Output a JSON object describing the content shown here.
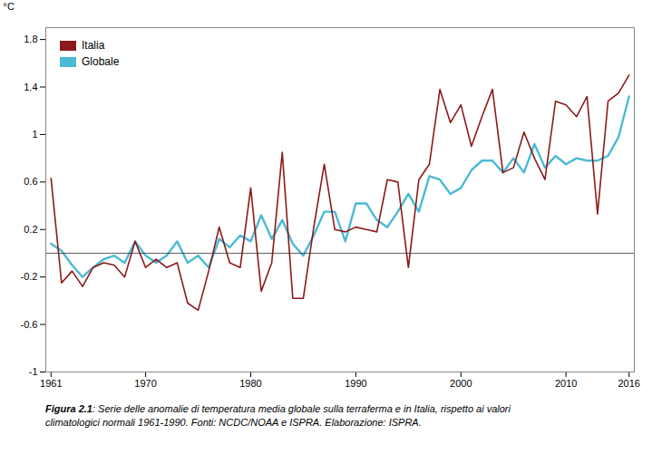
{
  "chart_data": {
    "type": "line",
    "x": [
      1961,
      1962,
      1963,
      1964,
      1965,
      1966,
      1967,
      1968,
      1969,
      1970,
      1971,
      1972,
      1973,
      1974,
      1975,
      1976,
      1977,
      1978,
      1979,
      1980,
      1981,
      1982,
      1983,
      1984,
      1985,
      1986,
      1987,
      1988,
      1989,
      1990,
      1991,
      1992,
      1993,
      1994,
      1995,
      1996,
      1997,
      1998,
      1999,
      2000,
      2001,
      2002,
      2003,
      2004,
      2005,
      2006,
      2007,
      2008,
      2009,
      2010,
      2011,
      2012,
      2013,
      2014,
      2015,
      2016
    ],
    "series": [
      {
        "name": "Italia",
        "color": "#8B1A1A",
        "values": [
          0.63,
          -0.25,
          -0.15,
          -0.28,
          -0.12,
          -0.08,
          -0.1,
          -0.2,
          0.1,
          -0.12,
          -0.05,
          -0.12,
          -0.08,
          -0.42,
          -0.48,
          -0.15,
          0.22,
          -0.08,
          -0.12,
          0.55,
          -0.32,
          -0.08,
          0.85,
          -0.38,
          -0.38,
          0.22,
          0.75,
          0.2,
          0.18,
          0.22,
          0.2,
          0.18,
          0.62,
          0.6,
          -0.12,
          0.62,
          0.75,
          1.38,
          1.1,
          1.25,
          0.9,
          1.15,
          1.38,
          0.68,
          0.72,
          1.02,
          0.8,
          0.62,
          1.28,
          1.25,
          1.15,
          1.32,
          0.33,
          1.28,
          1.35,
          1.5
        ]
      },
      {
        "name": "Globale",
        "color": "#4BBAD4",
        "values": [
          0.08,
          0.02,
          -0.1,
          -0.2,
          -0.12,
          -0.05,
          -0.02,
          -0.08,
          0.1,
          -0.02,
          -0.08,
          -0.02,
          0.1,
          -0.08,
          -0.02,
          -0.12,
          0.12,
          0.05,
          0.15,
          0.1,
          0.32,
          0.12,
          0.28,
          0.08,
          -0.02,
          0.15,
          0.35,
          0.35,
          0.1,
          0.42,
          0.42,
          0.28,
          0.22,
          0.35,
          0.5,
          0.35,
          0.65,
          0.62,
          0.5,
          0.55,
          0.7,
          0.78,
          0.78,
          0.68,
          0.8,
          0.68,
          0.92,
          0.72,
          0.82,
          0.75,
          0.8,
          0.78,
          0.78,
          0.82,
          0.98,
          1.32
        ]
      }
    ],
    "xlim": [
      1960.5,
      2016.5
    ],
    "xticks": [
      1961,
      1970,
      1980,
      1990,
      2000,
      2010,
      2016
    ],
    "ylim": [
      -1.0,
      1.9
    ],
    "yticks": [
      -1.0,
      -0.6,
      -0.2,
      0.2,
      0.6,
      1.0,
      1.4,
      1.8
    ],
    "ylabel": "°C",
    "hlines": [
      {
        "y": 0.0,
        "color": "#333333"
      }
    ],
    "legend": "upper left",
    "grid": false,
    "caption_bold": "Figura 2.1",
    "caption": ": Serie delle anomalie di temperatura media globale sulla terraferma e in Italia, rispetto ai valori\nclimatologici normali 1961-1990. Fonti: NCDC/NOAA e ISPRA. Elaborazione: ISPRA."
  }
}
